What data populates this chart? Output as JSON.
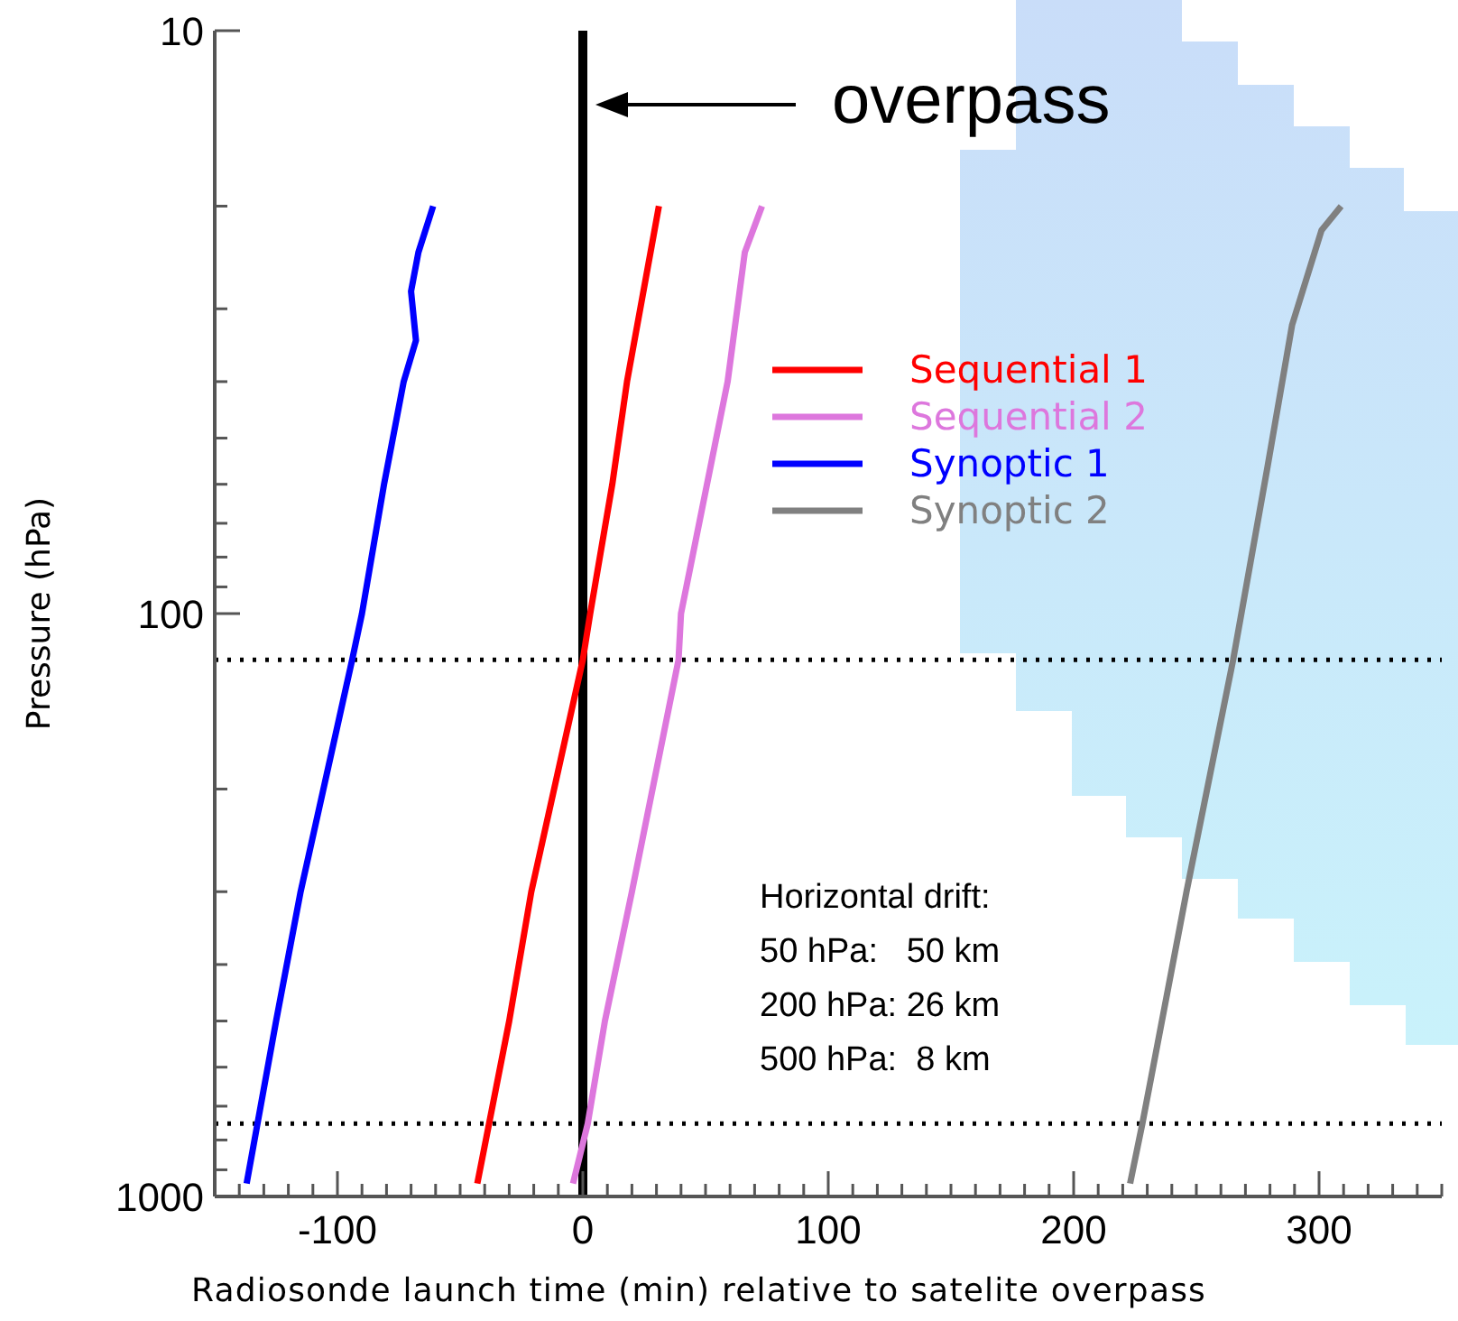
{
  "chart_data": {
    "type": "line",
    "xlabel": "Radiosonde launch time (min) relative to satelite overpass",
    "ylabel": "Pressure (hPa)",
    "xlim": [
      -150,
      350
    ],
    "ylim": [
      1000,
      10
    ],
    "log": "y",
    "grid": false,
    "legend": "right",
    "marker": "none",
    "line_style": "solid",
    "xticks": [
      {
        "value": -150,
        "label": null
      },
      {
        "value": -140,
        "label": null
      },
      {
        "value": -130,
        "label": null
      },
      {
        "value": -120,
        "label": null
      },
      {
        "value": -110,
        "label": null
      },
      -100,
      {
        "value": -90,
        "label": null
      },
      {
        "value": -80,
        "label": null
      },
      {
        "value": -70,
        "label": null
      },
      {
        "value": -60,
        "label": null
      },
      {
        "value": -50,
        "label": null
      },
      {
        "value": -40,
        "label": null
      },
      {
        "value": -30,
        "label": null
      },
      {
        "value": -20,
        "label": null
      },
      {
        "value": -10,
        "label": null
      },
      0,
      {
        "value": 10,
        "label": null
      },
      {
        "value": 20,
        "label": null
      },
      {
        "value": 30,
        "label": null
      },
      {
        "value": 40,
        "label": null
      },
      {
        "value": 50,
        "label": null
      },
      {
        "value": 60,
        "label": null
      },
      {
        "value": 70,
        "label": null
      },
      {
        "value": 80,
        "label": null
      },
      {
        "value": 90,
        "label": null
      },
      100,
      {
        "value": 110,
        "label": null
      },
      {
        "value": 120,
        "label": null
      },
      {
        "value": 130,
        "label": null
      },
      {
        "value": 140,
        "label": null
      },
      {
        "value": 150,
        "label": null
      },
      {
        "value": 160,
        "label": null
      },
      {
        "value": 170,
        "label": null
      },
      {
        "value": 180,
        "label": null
      },
      {
        "value": 190,
        "label": null
      },
      200,
      {
        "value": 210,
        "label": null
      },
      {
        "value": 220,
        "label": null
      },
      {
        "value": 230,
        "label": null
      },
      {
        "value": 240,
        "label": null
      },
      {
        "value": 250,
        "label": null
      },
      {
        "value": 260,
        "label": null
      },
      {
        "value": 270,
        "label": null
      },
      {
        "value": 280,
        "label": null
      },
      {
        "value": 290,
        "label": null
      },
      300,
      {
        "value": 310,
        "label": null
      },
      {
        "value": 320,
        "label": null
      },
      {
        "value": 330,
        "label": null
      },
      {
        "value": 340,
        "label": null
      },
      {
        "value": 350,
        "label": null
      }
    ],
    "yticks": [
      10,
      {
        "value": 20,
        "label": null
      },
      {
        "value": 30,
        "label": null
      },
      {
        "value": 40,
        "label": null
      },
      {
        "value": 50,
        "label": null
      },
      {
        "value": 60,
        "label": null
      },
      {
        "value": 70,
        "label": null
      },
      {
        "value": 80,
        "label": null
      },
      {
        "value": 90,
        "label": null
      },
      100,
      {
        "value": 200,
        "label": null
      },
      {
        "value": 300,
        "label": null
      },
      {
        "value": 400,
        "label": null
      },
      {
        "value": 500,
        "label": null
      },
      {
        "value": 600,
        "label": null
      },
      {
        "value": 700,
        "label": null
      },
      {
        "value": 800,
        "label": null
      },
      {
        "value": 900,
        "label": null
      },
      1000
    ],
    "series": [
      {
        "name": "Sequential 1",
        "color": "#ff0000",
        "x": [
          -43,
          -30,
          -21,
          0,
          3,
          12,
          18,
          31
        ],
        "values": [
          950,
          500,
          300,
          120,
          100,
          60,
          40,
          20
        ]
      },
      {
        "name": "Sequential 2",
        "color": "#dd77dd",
        "x": [
          -4,
          2,
          9,
          20,
          39,
          40,
          59,
          66,
          73
        ],
        "values": [
          950,
          750,
          500,
          300,
          120,
          100,
          40,
          24,
          20
        ]
      },
      {
        "name": "Synoptic 1",
        "color": "#0000ff",
        "x": [
          -137,
          -125,
          -115,
          -94,
          -90,
          -81,
          -73,
          -68,
          -70,
          -67,
          -61
        ],
        "values": [
          950,
          500,
          300,
          120,
          100,
          60,
          40,
          34,
          28,
          24,
          20
        ]
      },
      {
        "name": "Synoptic 2",
        "color": "#808080",
        "x": [
          223,
          228,
          246,
          265,
          279,
          289,
          301,
          309
        ],
        "values": [
          950,
          750,
          300,
          120,
          56,
          32,
          22,
          20
        ]
      }
    ],
    "ref_lines": [
      {
        "axis": "x",
        "value": 0,
        "label": "overpass",
        "color": "#000000",
        "line_style": "solid"
      },
      {
        "axis": "y",
        "value": 120,
        "color": "#000000",
        "line_style": "dotted"
      },
      {
        "axis": "y",
        "value": 750,
        "color": "#000000",
        "line_style": "dotted"
      }
    ],
    "annotations": [
      "Horizontal drift:",
      "50 hPa:   50 km",
      "200 hPa: 26 km",
      "500 hPa:  8 km"
    ]
  }
}
